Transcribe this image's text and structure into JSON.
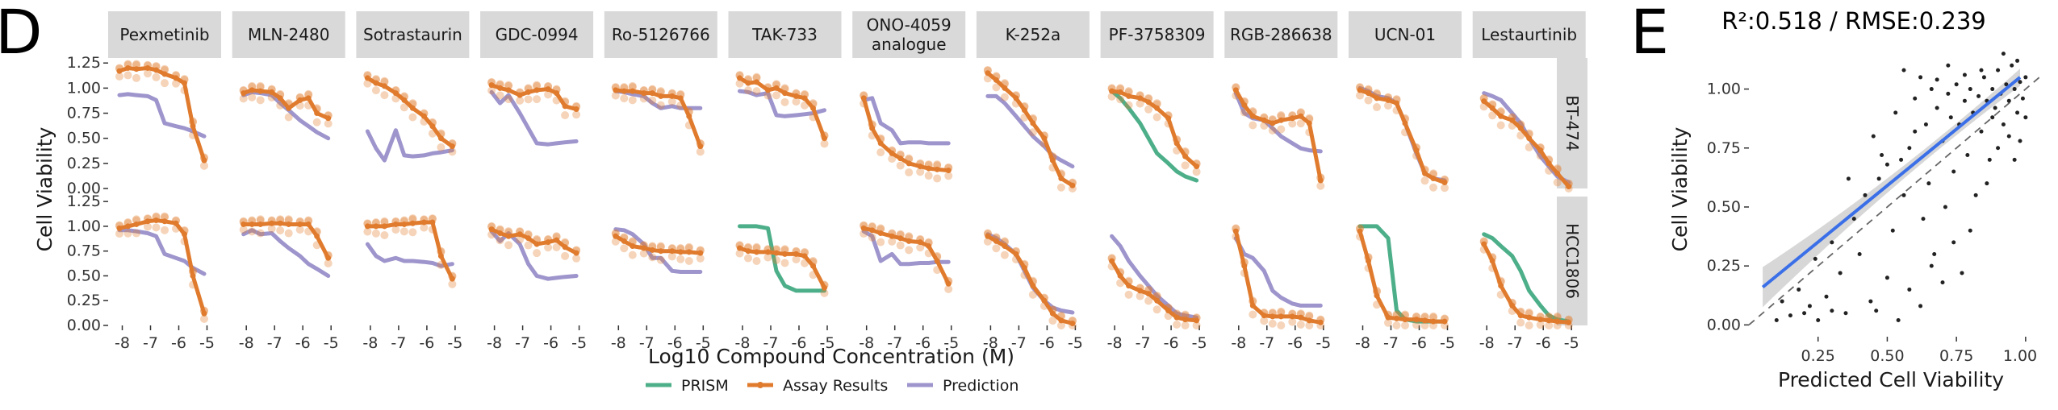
{
  "chart_data": [
    {
      "type": "line",
      "panel_label": "D",
      "xlabel": "Log10 Compound Concentration (M)",
      "ylabel": "Cell Viability",
      "x_ticks": [
        -8,
        -7,
        -6,
        -5
      ],
      "x_tick_labels": [
        "-8",
        "-7",
        "-6",
        "-5"
      ],
      "y_ticks": [
        0,
        0.25,
        0.5,
        0.75,
        1.0,
        1.25
      ],
      "y_tick_labels": [
        "0.00",
        "0.25",
        "0.50",
        "0.75",
        "1.00",
        "1.25"
      ],
      "xlim": [
        -8.5,
        -4.5
      ],
      "ylim": [
        0,
        1.3
      ],
      "x": [
        -8.1,
        -7.8,
        -7.5,
        -7.1,
        -6.8,
        -6.5,
        -6.1,
        -5.8,
        -5.5,
        -5.1
      ],
      "compounds": [
        "Pexmetinib",
        "MLN-2480",
        "Sotrastaurin",
        "GDC-0994",
        "Ro-5126766",
        "TAK-733",
        "ONO-4059 analogue",
        "K-252a",
        "PF-3758309",
        "RGB-286638",
        "UCN-01",
        "Lestaurtinib"
      ],
      "cell_lines": [
        "BT-474",
        "HCC1806"
      ],
      "legend": [
        {
          "name": "PRISM",
          "color": "#4daf8a"
        },
        {
          "name": "Assay Results",
          "color": "#e07b2e"
        },
        {
          "name": "Prediction",
          "color": "#9d95cc"
        }
      ],
      "grid": false,
      "legend_position": "bottom",
      "facets": [
        [
          {
            "assay": [
              1.17,
              1.2,
              1.19,
              1.2,
              1.18,
              1.14,
              1.1,
              1.05,
              0.62,
              0.28
            ],
            "prediction": [
              0.93,
              0.94,
              0.93,
              0.92,
              0.88,
              0.65,
              0.62,
              0.6,
              0.57,
              0.52
            ]
          },
          {
            "assay": [
              0.95,
              0.98,
              0.97,
              0.96,
              0.9,
              0.8,
              0.88,
              0.9,
              0.75,
              0.7
            ],
            "prediction": [
              0.93,
              0.96,
              0.95,
              0.93,
              0.85,
              0.78,
              0.68,
              0.62,
              0.56,
              0.5
            ]
          },
          {
            "assay": [
              1.1,
              1.05,
              1.02,
              0.95,
              0.88,
              0.8,
              0.72,
              0.62,
              0.5,
              0.42
            ],
            "prediction": [
              0.57,
              0.4,
              0.28,
              0.58,
              0.33,
              0.32,
              0.33,
              0.35,
              0.36,
              0.38
            ]
          },
          {
            "assay": [
              1.03,
              1.0,
              0.98,
              0.93,
              0.96,
              0.98,
              0.99,
              0.95,
              0.82,
              0.79
            ],
            "prediction": [
              0.96,
              0.85,
              0.93,
              0.75,
              0.6,
              0.45,
              0.44,
              0.45,
              0.46,
              0.47
            ]
          },
          {
            "assay": [
              0.98,
              0.97,
              0.97,
              0.95,
              0.95,
              0.92,
              0.92,
              0.9,
              0.72,
              0.42
            ],
            "prediction": [
              0.97,
              0.96,
              0.94,
              0.92,
              0.85,
              0.8,
              0.82,
              0.8,
              0.8,
              0.8
            ]
          },
          {
            "assay": [
              1.1,
              1.05,
              1.06,
              0.98,
              1.0,
              0.95,
              0.92,
              0.9,
              0.8,
              0.5
            ],
            "prediction": [
              0.97,
              0.96,
              0.93,
              0.95,
              0.73,
              0.72,
              0.73,
              0.74,
              0.75,
              0.78
            ]
          },
          {
            "assay": [
              0.9,
              0.6,
              0.45,
              0.35,
              0.3,
              0.25,
              0.22,
              0.2,
              0.19,
              0.18
            ],
            "prediction": [
              0.88,
              0.9,
              0.65,
              0.58,
              0.45,
              0.46,
              0.46,
              0.45,
              0.45,
              0.45
            ]
          },
          {
            "assay": [
              1.15,
              1.08,
              1.0,
              0.9,
              0.78,
              0.65,
              0.5,
              0.28,
              0.1,
              0.03
            ],
            "prediction": [
              0.92,
              0.92,
              0.85,
              0.72,
              0.62,
              0.52,
              0.42,
              0.33,
              0.28,
              0.22
            ]
          },
          {
            "assay": [
              0.97,
              0.96,
              0.92,
              0.9,
              0.86,
              0.8,
              0.7,
              0.45,
              0.32,
              0.22
            ],
            "prediction": [],
            "prism": [
              0.97,
              0.9,
              0.8,
              0.65,
              0.5,
              0.35,
              0.25,
              0.17,
              0.12,
              0.08
            ]
          },
          {
            "assay": [
              0.98,
              0.83,
              0.72,
              0.68,
              0.65,
              0.68,
              0.7,
              0.72,
              0.65,
              0.08
            ],
            "prediction": [
              0.95,
              0.75,
              0.7,
              0.68,
              0.6,
              0.52,
              0.45,
              0.4,
              0.38,
              0.37
            ]
          },
          {
            "assay": [
              0.98,
              0.95,
              0.9,
              0.88,
              0.85,
              0.65,
              0.38,
              0.15,
              0.1,
              0.06
            ],
            "prediction": [
              1.0,
              0.97,
              0.92,
              0.9,
              0.85,
              0.65,
              0.35,
              0.15,
              0.1,
              0.08
            ]
          },
          {
            "assay": [
              0.87,
              0.8,
              0.72,
              0.68,
              0.6,
              0.5,
              0.38,
              0.25,
              0.15,
              0.02
            ],
            "prediction": [
              0.95,
              0.92,
              0.88,
              0.75,
              0.65,
              0.5,
              0.32,
              0.22,
              0.12,
              0.06
            ]
          }
        ],
        [
          {
            "assay": [
              0.98,
              1.0,
              1.02,
              1.05,
              1.06,
              1.05,
              1.03,
              0.92,
              0.5,
              0.12
            ],
            "prediction": [
              0.96,
              0.96,
              0.95,
              0.93,
              0.9,
              0.72,
              0.68,
              0.65,
              0.58,
              0.52
            ]
          },
          {
            "assay": [
              1.02,
              1.02,
              1.02,
              1.03,
              1.03,
              1.02,
              1.02,
              1.02,
              0.9,
              0.68
            ],
            "prediction": [
              0.92,
              0.96,
              0.92,
              0.93,
              0.85,
              0.78,
              0.7,
              0.62,
              0.57,
              0.5
            ]
          },
          {
            "assay": [
              1.0,
              1.0,
              1.0,
              1.02,
              1.02,
              1.03,
              1.04,
              1.04,
              0.7,
              0.47
            ],
            "prediction": [
              0.82,
              0.7,
              0.65,
              0.68,
              0.65,
              0.65,
              0.64,
              0.63,
              0.6,
              0.62
            ]
          },
          {
            "assay": [
              0.97,
              0.93,
              0.9,
              0.92,
              0.88,
              0.82,
              0.84,
              0.86,
              0.79,
              0.73
            ],
            "prediction": [
              0.95,
              0.85,
              0.93,
              0.82,
              0.62,
              0.5,
              0.47,
              0.48,
              0.49,
              0.5
            ]
          },
          {
            "assay": [
              0.9,
              0.85,
              0.8,
              0.78,
              0.76,
              0.75,
              0.75,
              0.74,
              0.74,
              0.73
            ],
            "prediction": [
              0.97,
              0.96,
              0.92,
              0.82,
              0.68,
              0.68,
              0.55,
              0.54,
              0.54,
              0.54
            ]
          },
          {
            "assay": [
              0.78,
              0.75,
              0.74,
              0.74,
              0.73,
              0.72,
              0.72,
              0.7,
              0.6,
              0.38
            ],
            "prediction": [],
            "prism": [
              1.0,
              1.0,
              1.0,
              0.98,
              0.55,
              0.4,
              0.35,
              0.35,
              0.35,
              0.35
            ]
          },
          {
            "assay": [
              0.98,
              0.96,
              0.93,
              0.9,
              0.88,
              0.85,
              0.84,
              0.8,
              0.65,
              0.42
            ],
            "prediction": [
              0.95,
              0.9,
              0.65,
              0.72,
              0.62,
              0.62,
              0.63,
              0.63,
              0.64,
              0.64
            ]
          },
          {
            "assay": [
              0.9,
              0.85,
              0.8,
              0.72,
              0.58,
              0.4,
              0.25,
              0.12,
              0.05,
              0.02
            ],
            "prediction": [
              0.92,
              0.88,
              0.82,
              0.72,
              0.55,
              0.38,
              0.25,
              0.18,
              0.15,
              0.13
            ]
          },
          {
            "assay": [
              0.65,
              0.5,
              0.4,
              0.35,
              0.32,
              0.25,
              0.15,
              0.08,
              0.06,
              0.05
            ],
            "prediction": [
              0.9,
              0.8,
              0.65,
              0.5,
              0.4,
              0.3,
              0.2,
              0.12,
              0.1,
              0.08
            ]
          },
          {
            "assay": [
              0.95,
              0.6,
              0.2,
              0.1,
              0.09,
              0.09,
              0.09,
              0.08,
              0.05,
              0.03
            ],
            "prediction": [
              0.88,
              0.72,
              0.68,
              0.55,
              0.35,
              0.28,
              0.22,
              0.2,
              0.2,
              0.2
            ]
          },
          {
            "assay": [
              0.95,
              0.65,
              0.3,
              0.08,
              0.07,
              0.06,
              0.06,
              0.05,
              0.04,
              0.04
            ],
            "prediction": [],
            "prism": [
              1.0,
              1.0,
              1.0,
              0.88,
              0.15,
              0.06,
              0.04,
              0.04,
              0.04,
              0.04
            ]
          },
          {
            "assay": [
              0.82,
              0.65,
              0.4,
              0.2,
              0.1,
              0.08,
              0.06,
              0.05,
              0.04,
              0.03
            ],
            "prediction": [],
            "prism": [
              0.92,
              0.88,
              0.8,
              0.7,
              0.55,
              0.35,
              0.2,
              0.1,
              0.06,
              0.04
            ]
          }
        ]
      ]
    },
    {
      "type": "scatter",
      "panel_label": "E",
      "title": "R²:0.518 / RMSE:0.239",
      "xlabel": "Predicted Cell Viability",
      "ylabel": "Cell Viability",
      "x_ticks": [
        0.25,
        0.5,
        0.75,
        1.0
      ],
      "x_tick_labels": [
        "0.25",
        "0.50",
        "0.75",
        "1.00"
      ],
      "y_ticks": [
        0,
        0.25,
        0.5,
        0.75,
        1.0
      ],
      "y_tick_labels": [
        "0.00",
        "0.25",
        "0.50",
        "0.75",
        "1.00"
      ],
      "xlim": [
        0.0,
        1.05
      ],
      "ylim": [
        -0.05,
        1.2
      ],
      "fit_line": {
        "x": [
          0.05,
          0.98
        ],
        "y": [
          0.16,
          1.05
        ],
        "color": "#3a6fe8"
      },
      "identity_line": {
        "x": [
          0.0,
          1.05
        ],
        "y": [
          0.0,
          1.05
        ],
        "style": "dashed"
      },
      "points": [
        [
          0.2,
          0.05
        ],
        [
          0.22,
          0.08
        ],
        [
          0.25,
          0.02
        ],
        [
          0.28,
          0.12
        ],
        [
          0.3,
          0.06
        ],
        [
          0.18,
          0.15
        ],
        [
          0.33,
          0.22
        ],
        [
          0.35,
          0.05
        ],
        [
          0.38,
          0.45
        ],
        [
          0.4,
          0.3
        ],
        [
          0.42,
          0.55
        ],
        [
          0.44,
          0.1
        ],
        [
          0.46,
          0.06
        ],
        [
          0.47,
          0.62
        ],
        [
          0.48,
          0.72
        ],
        [
          0.5,
          0.2
        ],
        [
          0.52,
          0.4
        ],
        [
          0.53,
          0.9
        ],
        [
          0.55,
          0.7
        ],
        [
          0.56,
          0.55
        ],
        [
          0.58,
          0.75
        ],
        [
          0.6,
          0.96
        ],
        [
          0.62,
          1.05
        ],
        [
          0.63,
          0.45
        ],
        [
          0.64,
          0.85
        ],
        [
          0.65,
          0.6
        ],
        [
          0.66,
          1.0
        ],
        [
          0.67,
          0.3
        ],
        [
          0.68,
          0.92
        ],
        [
          0.7,
          0.78
        ],
        [
          0.71,
          0.5
        ],
        [
          0.72,
          0.98
        ],
        [
          0.73,
          0.88
        ],
        [
          0.74,
          0.65
        ],
        [
          0.75,
          1.02
        ],
        [
          0.76,
          0.85
        ],
        [
          0.77,
          0.22
        ],
        [
          0.78,
          0.95
        ],
        [
          0.79,
          0.72
        ],
        [
          0.8,
          1.0
        ],
        [
          0.81,
          0.9
        ],
        [
          0.82,
          0.55
        ],
        [
          0.83,
          0.97
        ],
        [
          0.84,
          0.82
        ],
        [
          0.85,
          1.05
        ],
        [
          0.86,
          0.95
        ],
        [
          0.87,
          0.7
        ],
        [
          0.88,
          1.0
        ],
        [
          0.89,
          0.92
        ],
        [
          0.9,
          1.08
        ],
        [
          0.91,
          0.98
        ],
        [
          0.92,
          0.85
        ],
        [
          0.93,
          1.02
        ],
        [
          0.94,
          0.95
        ],
        [
          0.95,
          1.1
        ],
        [
          0.96,
          1.0
        ],
        [
          0.97,
          0.9
        ],
        [
          0.98,
          1.03
        ],
        [
          0.99,
          0.96
        ],
        [
          1.0,
          1.05
        ],
        [
          0.9,
          0.75
        ],
        [
          0.86,
          0.6
        ],
        [
          0.8,
          0.4
        ],
        [
          0.74,
          0.35
        ],
        [
          0.66,
          0.25
        ],
        [
          0.58,
          0.15
        ],
        [
          0.54,
          0.02
        ],
        [
          0.62,
          0.08
        ],
        [
          0.7,
          0.18
        ],
        [
          0.94,
          0.8
        ],
        [
          0.97,
          1.12
        ],
        [
          0.92,
          1.15
        ],
        [
          0.88,
          0.88
        ],
        [
          0.84,
          1.08
        ],
        [
          0.78,
          1.06
        ],
        [
          0.72,
          1.1
        ],
        [
          0.68,
          1.04
        ],
        [
          0.6,
          0.82
        ],
        [
          0.56,
          1.08
        ],
        [
          0.5,
          0.68
        ],
        [
          0.45,
          0.8
        ],
        [
          0.36,
          0.62
        ],
        [
          0.3,
          0.35
        ],
        [
          0.24,
          0.28
        ],
        [
          0.12,
          0.1
        ],
        [
          0.15,
          0.04
        ],
        [
          0.1,
          0.02
        ],
        [
          0.98,
          0.78
        ],
        [
          1.0,
          0.88
        ],
        [
          0.96,
          0.7
        ]
      ]
    }
  ]
}
